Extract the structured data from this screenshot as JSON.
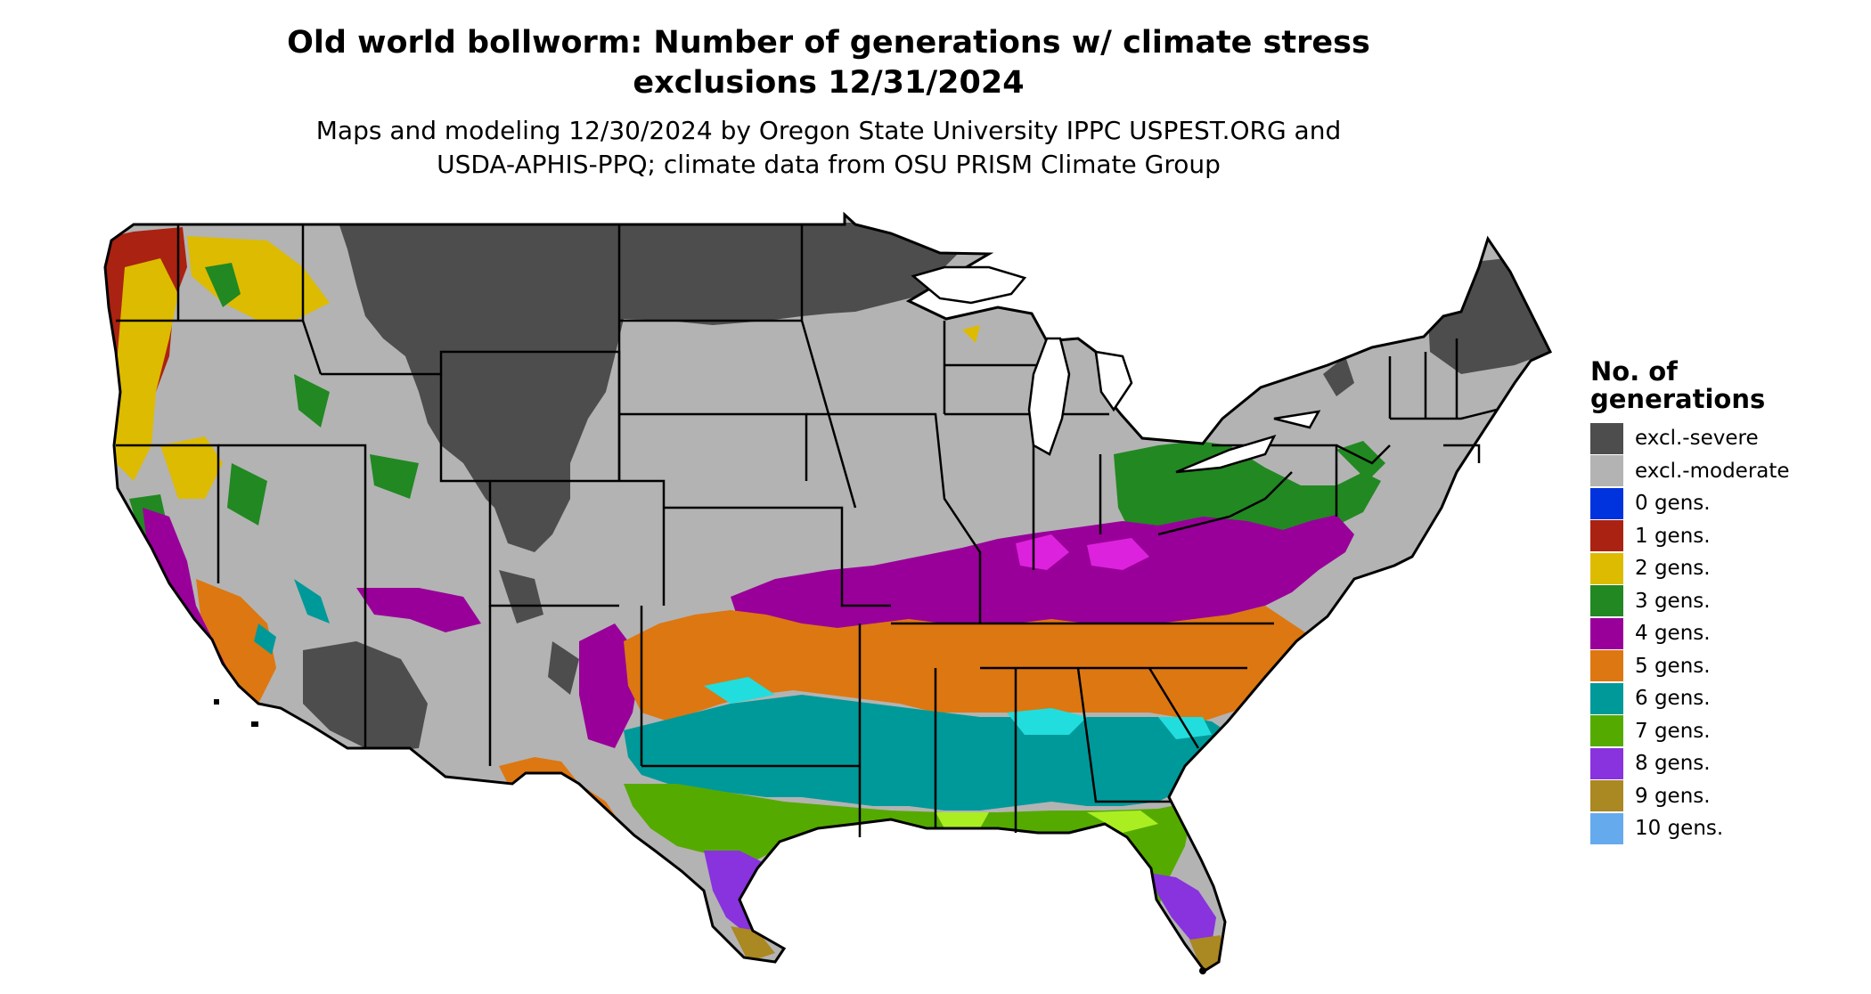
{
  "title_line1": "Old world bollworm: Number of generations w/ climate stress",
  "title_line2": "exclusions 12/31/2024",
  "subtitle_line1": "Maps and modeling 12/30/2024 by Oregon State University IPPC USPEST.ORG and",
  "subtitle_line2": "USDA-APHIS-PPQ; climate data from OSU PRISM Climate Group",
  "legend": {
    "title_line1": "No. of",
    "title_line2": "generations",
    "items": [
      {
        "label": "excl.-severe",
        "color": "#4d4d4d"
      },
      {
        "label": "excl.-moderate",
        "color": "#b3b3b3"
      },
      {
        "label": "0 gens.",
        "color": "#0033dd"
      },
      {
        "label": "1 gens.",
        "color": "#aa2211"
      },
      {
        "label": "2 gens.",
        "color": "#ddbb00"
      },
      {
        "label": "3 gens.",
        "color": "#228822"
      },
      {
        "label": "4 gens.",
        "color": "#990099"
      },
      {
        "label": "5 gens.",
        "color": "#dd7711"
      },
      {
        "label": "6 gens.",
        "color": "#009999"
      },
      {
        "label": "7 gens.",
        "color": "#55aa00"
      },
      {
        "label": "8 gens.",
        "color": "#8833dd"
      },
      {
        "label": "9 gens.",
        "color": "#aa8822"
      },
      {
        "label": "10 gens.",
        "color": "#66aaee"
      }
    ]
  }
}
